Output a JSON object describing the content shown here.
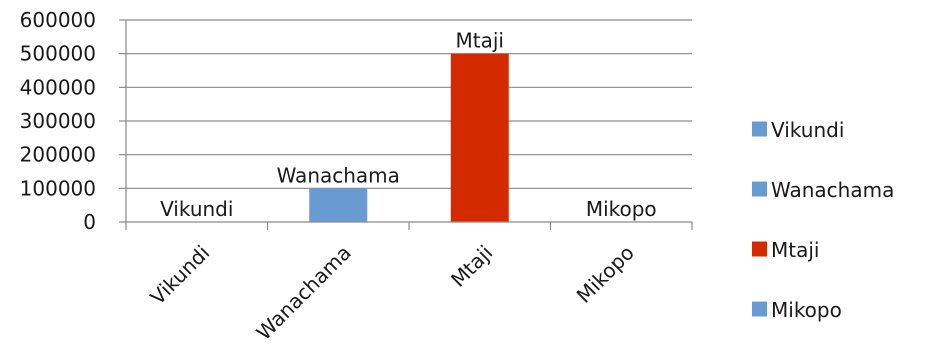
{
  "chart_data": {
    "type": "bar",
    "title": "",
    "xlabel": "",
    "ylabel": "",
    "categories": [
      "Vikundi",
      "Wanachama",
      "Mtaji",
      "Mikopo"
    ],
    "values": [
      0,
      100000,
      500000,
      0
    ],
    "colors": [
      "#6a9bd0",
      "#6a9bd0",
      "#d42a00",
      "#6a9bd0"
    ],
    "data_labels": [
      "Vikundi",
      "Wanachama",
      "Mtaji",
      "Mikopo"
    ],
    "ylim": [
      0,
      600000
    ],
    "yticks": [
      "600000",
      "500000",
      "400000",
      "300000",
      "200000",
      "100000",
      "0"
    ],
    "grid": true,
    "legend": {
      "position": "right",
      "entries": [
        "Vikundi",
        "Wanachama",
        "Mtaji",
        "Mikopo"
      ]
    }
  }
}
